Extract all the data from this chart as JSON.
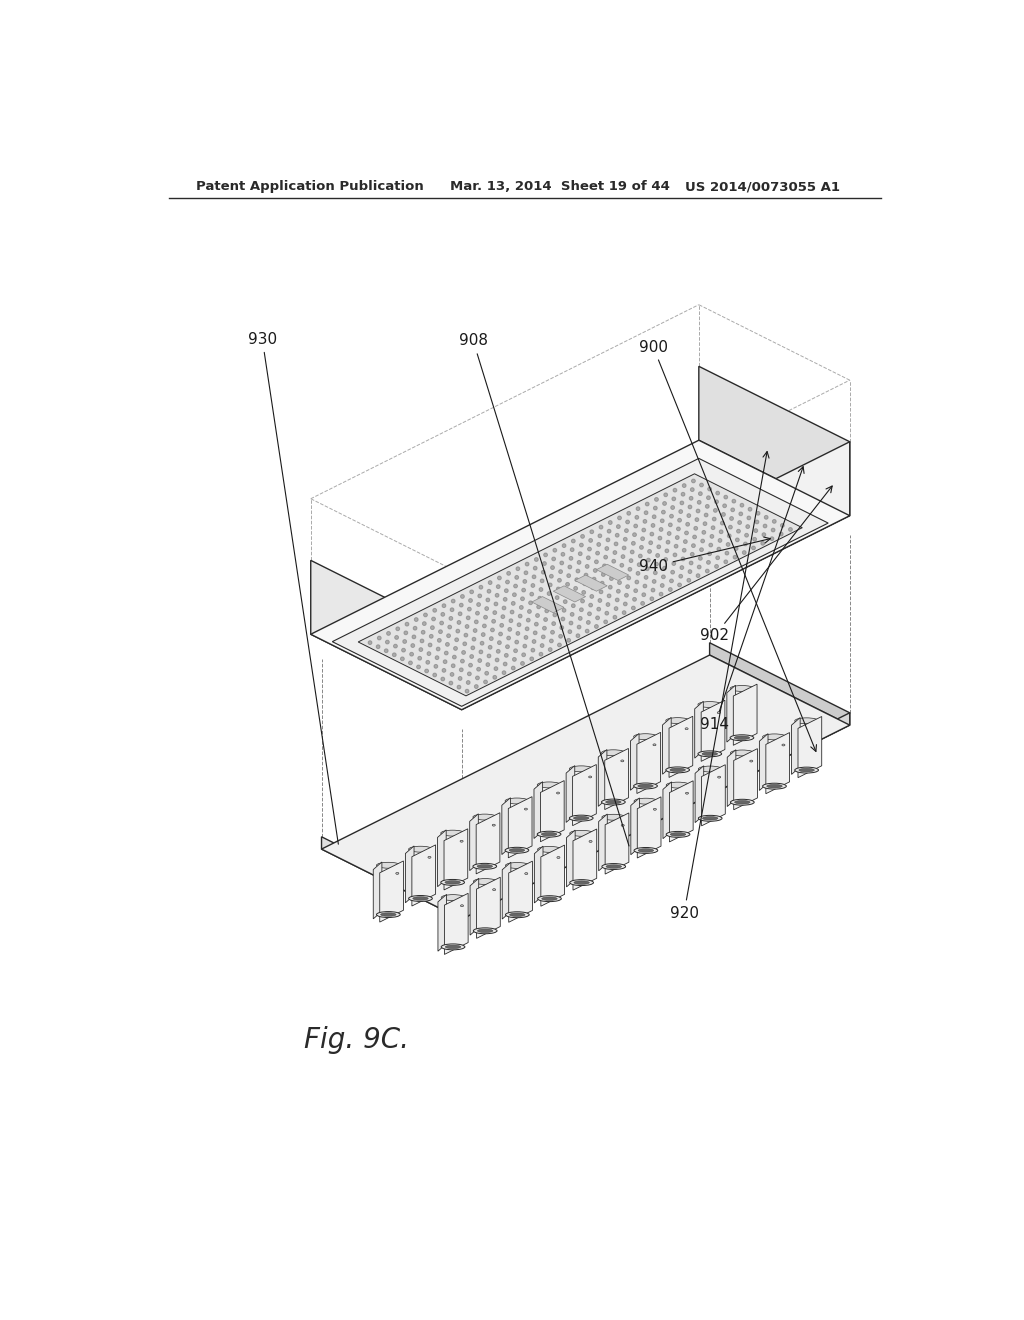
{
  "header_left": "Patent Application Publication",
  "header_mid": "Mar. 13, 2014  Sheet 19 of 44",
  "header_right": "US 2014/0073055 A1",
  "figure_label": "Fig. 9C.",
  "background_color": "#ffffff",
  "line_color": "#2a2a2a",
  "lw_main": 1.0,
  "n_tubes_row": 12,
  "n_dot_cols": 36,
  "n_dot_rows": 13
}
